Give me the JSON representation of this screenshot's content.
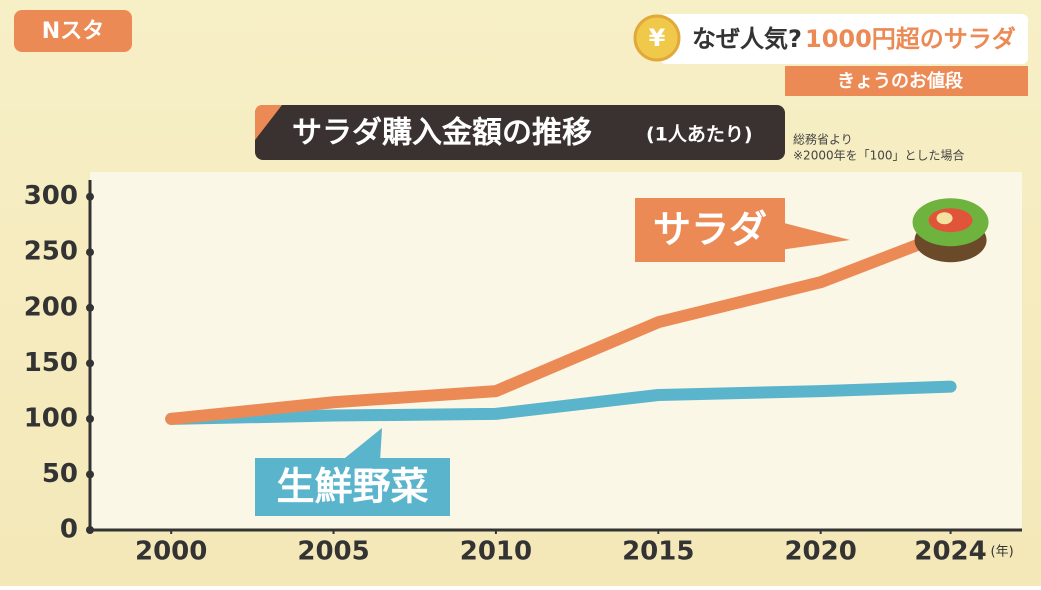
{
  "header": {
    "logo": "Nスタ",
    "badge": "¥",
    "headline_question": "なぜ人気?",
    "headline": "1000円超のサラダ",
    "corner_label": "きょうのお値段"
  },
  "chart_data": {
    "type": "line",
    "title": "サラダ購入金額の推移",
    "subtitle": "(1人あたり)",
    "source": "総務省より",
    "note": "※2000年を「100」とした場合",
    "x_unit": "(年)",
    "x": [
      2000,
      2005,
      2010,
      2015,
      2020,
      2024
    ],
    "series": [
      {
        "name": "サラダ",
        "color": "#ec8a55",
        "values": [
          100,
          115,
          125,
          187,
          223,
          268
        ]
      },
      {
        "name": "生鮮野菜",
        "color": "#5ab4cc",
        "values": [
          100,
          103,
          104.5,
          121.5,
          125,
          129
        ]
      }
    ],
    "xlim": [
      1997.5,
      2026.2
    ],
    "xticks": [
      2000,
      2005,
      2010,
      2015,
      2020,
      2024
    ],
    "ylim": [
      0,
      315
    ],
    "yticks": [
      0,
      50,
      100,
      150,
      200,
      250,
      300
    ]
  }
}
